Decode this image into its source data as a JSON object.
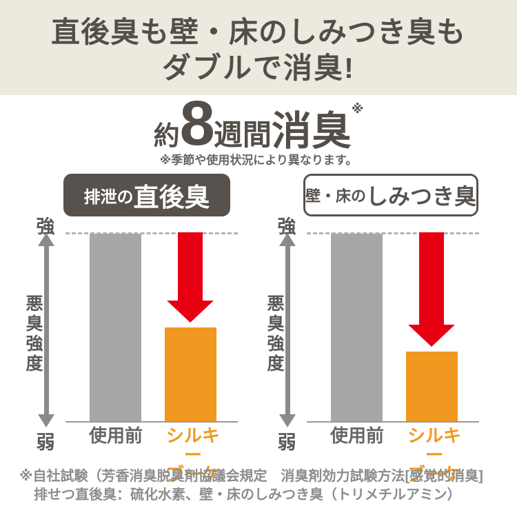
{
  "colors": {
    "header-bg": "#ece9df",
    "ink": "#544e48",
    "box-dark": "#57524d",
    "bar-gray": "#a7a7a7",
    "bar-orange": "#f0981f",
    "arrow-red": "#e60012",
    "axis-gray": "#8a8a8a",
    "dash-gray": "#b3b3b3",
    "note-gray": "#8c8c8c"
  },
  "header": {
    "line1": "直後臭も壁・床のしみつき臭も",
    "line2": "ダブルで消臭!"
  },
  "headline": {
    "approx": "約",
    "number": "8",
    "weeks": "週間",
    "deodorize": "消臭",
    "asterisk": "※",
    "note": "※季節や使用状況により異なります。"
  },
  "charts": {
    "left": {
      "title_prefix": "排泄の",
      "title_main": "直後臭",
      "y_top": "強",
      "y_bottom": "弱",
      "y_axis_label": "悪臭強度",
      "category1": "使用前",
      "category2_line1": "シルキー",
      "category2_line2": "ブーケ"
    },
    "right": {
      "title_prefix": "壁・床の",
      "title_main": "しみつき臭",
      "y_top": "強",
      "y_bottom": "弱",
      "y_axis_label": "悪臭強度",
      "category1": "使用前",
      "category2_line1": "シルキー",
      "category2_line2": "ブーケ"
    }
  },
  "chart_data": [
    {
      "type": "bar",
      "title": "排泄の直後臭",
      "categories": [
        "使用前",
        "シルキーブーケ"
      ],
      "values": [
        100,
        50
      ],
      "ylabel": "悪臭強度",
      "yaxis_top_label": "強",
      "yaxis_bottom_label": "弱",
      "ylim": [
        0,
        100
      ],
      "unit": "relative odor intensity (% of before-use level)",
      "bar_colors": [
        "#a7a7a7",
        "#f0981f"
      ],
      "annotations": [
        "dashed reference line at before-use level",
        "red downward arrow showing odor reduction"
      ]
    },
    {
      "type": "bar",
      "title": "壁・床のしみつき臭",
      "categories": [
        "使用前",
        "シルキーブーケ"
      ],
      "values": [
        100,
        37
      ],
      "ylabel": "悪臭強度",
      "yaxis_top_label": "強",
      "yaxis_bottom_label": "弱",
      "ylim": [
        0,
        100
      ],
      "unit": "relative odor intensity (% of before-use level)",
      "bar_colors": [
        "#a7a7a7",
        "#f0981f"
      ],
      "annotations": [
        "dashed reference line at before-use level",
        "red downward arrow showing odor reduction"
      ]
    }
  ],
  "footnote": {
    "line1": "※自社試験（芳香消臭脱臭剤協議会規定　消臭剤効力試験方法[感覚的消臭]",
    "line2": "排せつ直後臭：硫化水素、壁・床のしみつき臭（トリメチルアミン）"
  }
}
